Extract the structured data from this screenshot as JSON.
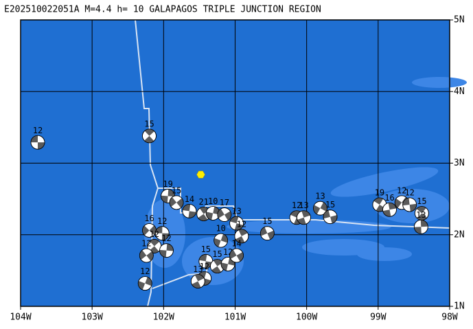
{
  "title": "E202510022051A  M=4.4  h= 10  GALAPAGOS TRIPLE JUNCTION REGION",
  "map": {
    "xlim": [
      -104,
      -98
    ],
    "ylim": [
      1,
      5
    ],
    "xticks": [
      {
        "value": -104,
        "label": "104W"
      },
      {
        "value": -103,
        "label": "103W"
      },
      {
        "value": -102,
        "label": "102W"
      },
      {
        "value": -101,
        "label": "101W"
      },
      {
        "value": -100,
        "label": "100W"
      },
      {
        "value": -99,
        "label": "99W"
      },
      {
        "value": -98,
        "label": "98W"
      }
    ],
    "yticks": [
      {
        "value": 1,
        "label": "1N"
      },
      {
        "value": 2,
        "label": "2N"
      },
      {
        "value": 3,
        "label": "3N"
      },
      {
        "value": 4,
        "label": "4N"
      },
      {
        "value": 5,
        "label": "5N"
      }
    ],
    "epicenter": {
      "lon": -101.48,
      "lat": 2.84,
      "color": "#ffee00"
    },
    "events": [
      {
        "lon": -103.76,
        "lat": 3.29,
        "depth": 12
      },
      {
        "lon": -102.2,
        "lat": 3.38,
        "depth": 15
      },
      {
        "lon": -101.94,
        "lat": 2.54,
        "depth": 19
      },
      {
        "lon": -101.82,
        "lat": 2.45,
        "depth": 15
      },
      {
        "lon": -101.64,
        "lat": 2.33,
        "depth": 14
      },
      {
        "lon": -101.44,
        "lat": 2.29,
        "depth": 21
      },
      {
        "lon": -101.31,
        "lat": 2.3,
        "depth": 10
      },
      {
        "lon": -101.15,
        "lat": 2.28,
        "depth": 17
      },
      {
        "lon": -100.98,
        "lat": 2.16,
        "depth": 13
      },
      {
        "lon": -100.91,
        "lat": 1.98,
        "depth": 12
      },
      {
        "lon": -101.2,
        "lat": 1.92,
        "depth": 10
      },
      {
        "lon": -100.55,
        "lat": 2.02,
        "depth": 15
      },
      {
        "lon": -100.14,
        "lat": 2.24,
        "depth": 12
      },
      {
        "lon": -100.04,
        "lat": 2.24,
        "depth": 13
      },
      {
        "lon": -99.81,
        "lat": 2.37,
        "depth": 13
      },
      {
        "lon": -99.67,
        "lat": 2.25,
        "depth": 15
      },
      {
        "lon": -98.98,
        "lat": 2.42,
        "depth": 19
      },
      {
        "lon": -98.84,
        "lat": 2.35,
        "depth": 16
      },
      {
        "lon": -98.67,
        "lat": 2.45,
        "depth": 12
      },
      {
        "lon": -98.56,
        "lat": 2.42,
        "depth": 12
      },
      {
        "lon": -98.39,
        "lat": 2.3,
        "depth": 15
      },
      {
        "lon": -98.4,
        "lat": 2.11,
        "depth": 13
      },
      {
        "lon": -102.2,
        "lat": 2.06,
        "depth": 16
      },
      {
        "lon": -102.02,
        "lat": 2.02,
        "depth": 12
      },
      {
        "lon": -102.13,
        "lat": 1.84,
        "depth": 12
      },
      {
        "lon": -101.96,
        "lat": 1.78,
        "depth": 12
      },
      {
        "lon": -102.24,
        "lat": 1.71,
        "depth": 12
      },
      {
        "lon": -101.41,
        "lat": 1.63,
        "depth": 15
      },
      {
        "lon": -101.25,
        "lat": 1.56,
        "depth": 15
      },
      {
        "lon": -101.1,
        "lat": 1.59,
        "depth": 12
      },
      {
        "lon": -100.98,
        "lat": 1.71,
        "depth": 14
      },
      {
        "lon": -101.43,
        "lat": 1.39,
        "depth": 12
      },
      {
        "lon": -101.52,
        "lat": 1.35,
        "depth": 13
      },
      {
        "lon": -102.26,
        "lat": 1.32,
        "depth": 12
      }
    ]
  }
}
